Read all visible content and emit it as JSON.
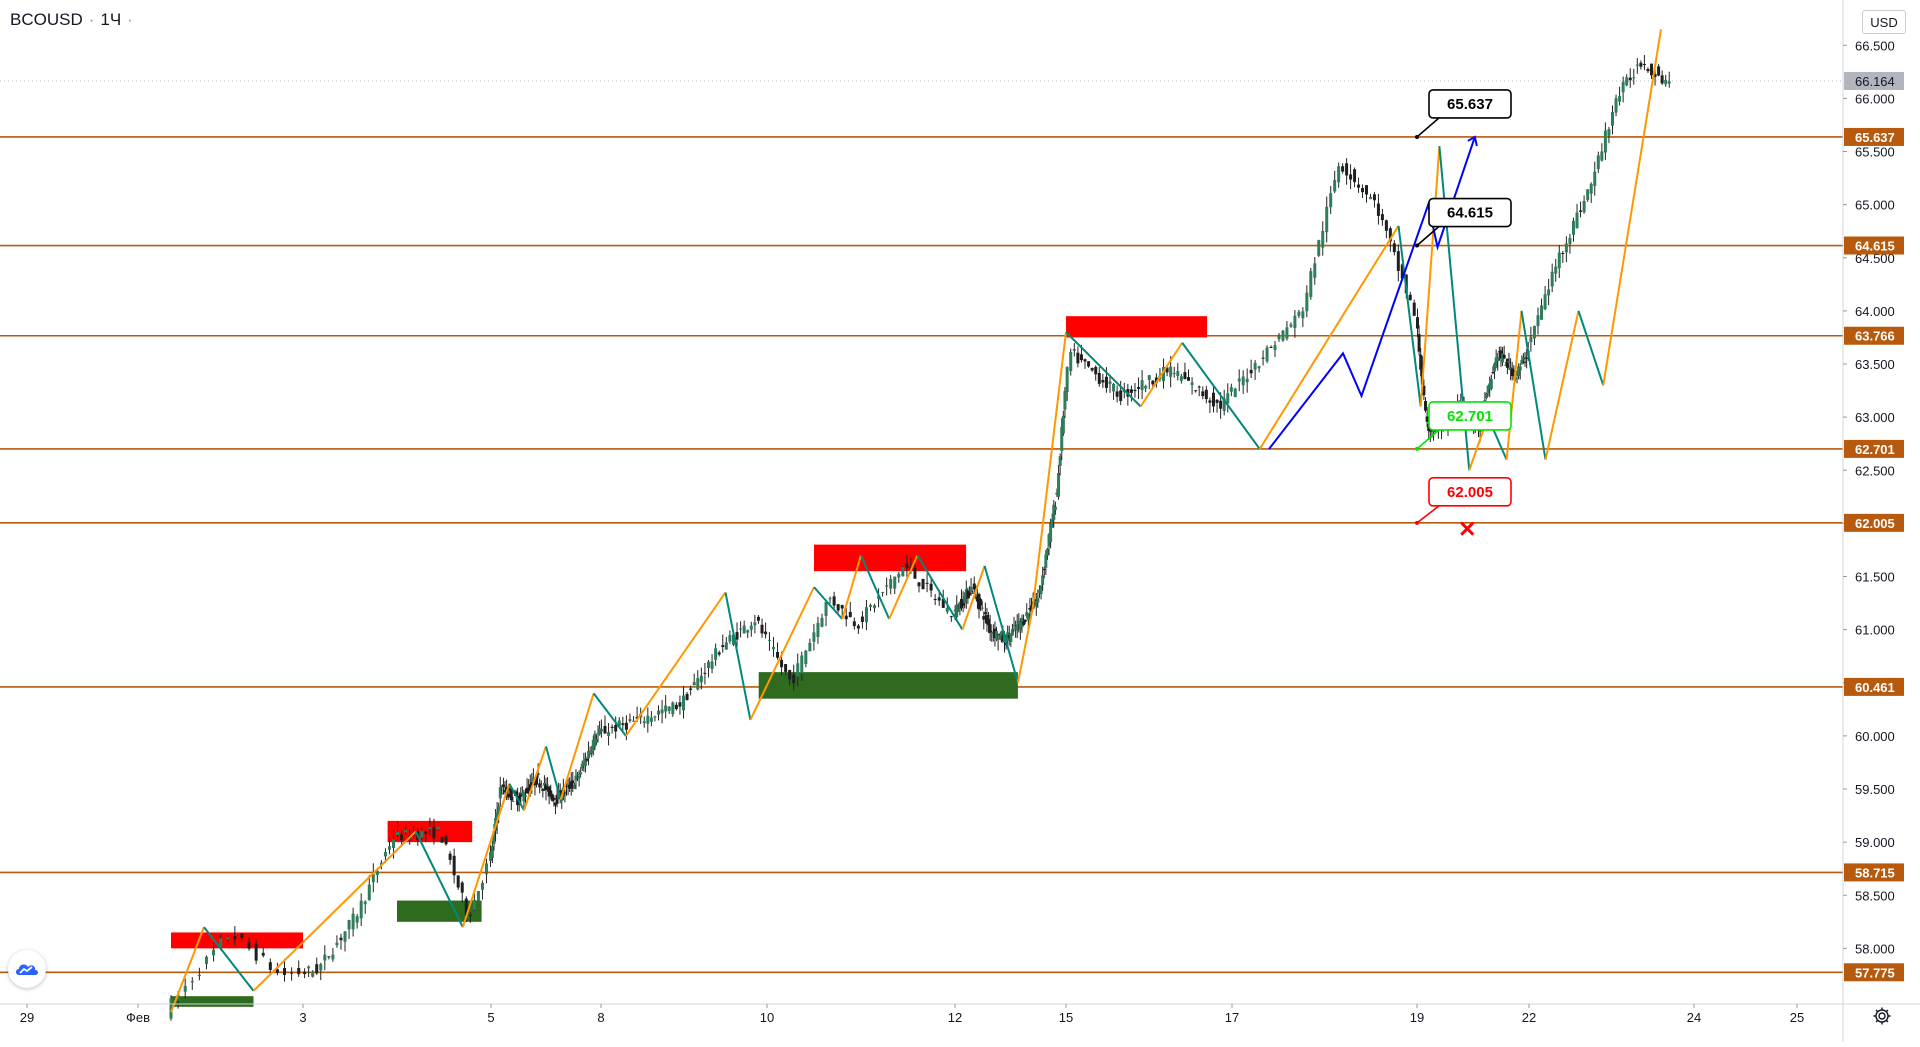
{
  "header": {
    "symbol": "BCOUSD",
    "separator": "·",
    "interval": "1Ч",
    "extra": "·"
  },
  "currency": "USD",
  "icons": {
    "logo": "tradingview-cloud-icon",
    "settings": "gear-icon"
  },
  "colors": {
    "level_line": "#b85a0d",
    "level_label_bg": "#b85a0d",
    "up_candle": "#2e7d5b",
    "down_candle": "#1f1f1f",
    "zigzag_up": "#ff9800",
    "zigzag_down": "#00897b",
    "projection": "#0000ff",
    "supply_zone": "#ff0000",
    "demand_zone": "#2e6b1f",
    "target_green": "#00e600",
    "target_red": "#ff0000",
    "last_price_bg": "#b2b5be"
  },
  "chart_data": {
    "type": "candlestick",
    "symbol": "BCOUSD",
    "interval": "1Ч",
    "price_ticks": [
      "58.000",
      "58.500",
      "59.000",
      "59.500",
      "60.000",
      "60.500",
      "61.000",
      "61.500",
      "62.000",
      "62.500",
      "63.000",
      "63.500",
      "64.000",
      "64.500",
      "65.000",
      "65.500",
      "66.000",
      "66.500"
    ],
    "time_labels": [
      "29",
      "Фев",
      "3",
      "5",
      "8",
      "10",
      "12",
      "15",
      "17",
      "19",
      "22",
      "24",
      "25"
    ],
    "last_price": 66.164,
    "horizontal_levels": [
      "57.775",
      "58.715",
      "60.461",
      "62.005",
      "62.701",
      "63.766",
      "64.615",
      "65.637"
    ],
    "callouts": [
      {
        "label": "65.637",
        "style": "black"
      },
      {
        "label": "64.615",
        "style": "black"
      },
      {
        "label": "62.701",
        "style": "green"
      },
      {
        "label": "62.005",
        "style": "red"
      }
    ],
    "price_path": [
      {
        "t": 2.2,
        "p": 57.4
      },
      {
        "t": 2.6,
        "p": 58.15
      },
      {
        "t": 2.9,
        "p": 57.75
      },
      {
        "t": 3.2,
        "p": 57.8
      },
      {
        "t": 3.6,
        "p": 58.3
      },
      {
        "t": 4.0,
        "p": 59.05
      },
      {
        "t": 4.5,
        "p": 59.1
      },
      {
        "t": 4.8,
        "p": 58.3
      },
      {
        "t": 5.3,
        "p": 59.5
      },
      {
        "t": 5.8,
        "p": 59.4
      },
      {
        "t": 6.3,
        "p": 59.6
      },
      {
        "t": 6.8,
        "p": 59.4
      },
      {
        "t": 7.4,
        "p": 59.6
      },
      {
        "t": 7.9,
        "p": 60.0
      },
      {
        "t": 8.5,
        "p": 60.15
      },
      {
        "t": 9.0,
        "p": 60.3
      },
      {
        "t": 9.5,
        "p": 60.85
      },
      {
        "t": 9.9,
        "p": 61.1
      },
      {
        "t": 10.3,
        "p": 60.5
      },
      {
        "t": 10.7,
        "p": 61.3
      },
      {
        "t": 11.0,
        "p": 61.05
      },
      {
        "t": 11.5,
        "p": 61.6
      },
      {
        "t": 12.0,
        "p": 61.15
      },
      {
        "t": 12.5,
        "p": 61.4
      },
      {
        "t": 13.0,
        "p": 61.0
      },
      {
        "t": 13.4,
        "p": 60.9
      },
      {
        "t": 13.9,
        "p": 61.1
      },
      {
        "t": 14.3,
        "p": 61.3
      },
      {
        "t": 14.8,
        "p": 62.3
      },
      {
        "t": 15.1,
        "p": 63.6
      },
      {
        "t": 15.7,
        "p": 63.2
      },
      {
        "t": 16.3,
        "p": 63.45
      },
      {
        "t": 16.9,
        "p": 63.1
      },
      {
        "t": 17.3,
        "p": 63.5
      },
      {
        "t": 17.8,
        "p": 64.0
      },
      {
        "t": 18.2,
        "p": 65.4
      },
      {
        "t": 18.6,
        "p": 65.0
      },
      {
        "t": 19.0,
        "p": 64.0
      },
      {
        "t": 19.3,
        "p": 62.9
      },
      {
        "t": 19.7,
        "p": 62.9
      },
      {
        "t": 20.2,
        "p": 63.1
      },
      {
        "t": 20.7,
        "p": 62.9
      },
      {
        "t": 21.2,
        "p": 63.6
      },
      {
        "t": 21.7,
        "p": 63.4
      },
      {
        "t": 22.0,
        "p": 63.6
      },
      {
        "t": 22.4,
        "p": 64.5
      },
      {
        "t": 22.8,
        "p": 65.2
      },
      {
        "t": 23.1,
        "p": 66.0
      },
      {
        "t": 23.4,
        "p": 66.35
      },
      {
        "t": 23.7,
        "p": 66.164
      }
    ],
    "zigzag_swings": [
      {
        "t": 2.2,
        "p": 57.4
      },
      {
        "t": 2.4,
        "p": 58.2
      },
      {
        "t": 2.7,
        "p": 57.6
      },
      {
        "t": 4.2,
        "p": 59.1
      },
      {
        "t": 4.7,
        "p": 58.2
      },
      {
        "t": 5.5,
        "p": 59.55
      },
      {
        "t": 5.9,
        "p": 59.3
      },
      {
        "t": 6.5,
        "p": 59.9
      },
      {
        "t": 6.9,
        "p": 59.4
      },
      {
        "t": 7.8,
        "p": 60.4
      },
      {
        "t": 8.3,
        "p": 60.0
      },
      {
        "t": 9.5,
        "p": 61.35
      },
      {
        "t": 9.8,
        "p": 60.15
      },
      {
        "t": 10.5,
        "p": 61.4
      },
      {
        "t": 10.8,
        "p": 61.1
      },
      {
        "t": 11.0,
        "p": 61.7
      },
      {
        "t": 11.3,
        "p": 61.1
      },
      {
        "t": 11.6,
        "p": 61.7
      },
      {
        "t": 12.2,
        "p": 61.0
      },
      {
        "t": 12.8,
        "p": 61.6
      },
      {
        "t": 13.7,
        "p": 60.5
      },
      {
        "t": 14.1,
        "p": 61.2
      },
      {
        "t": 15.0,
        "p": 63.8
      },
      {
        "t": 15.9,
        "p": 63.1
      },
      {
        "t": 16.4,
        "p": 63.7
      },
      {
        "t": 17.3,
        "p": 62.7
      },
      {
        "t": 18.8,
        "p": 64.8
      },
      {
        "t": 19.1,
        "p": 63.1
      },
      {
        "t": 19.6,
        "p": 65.55
      },
      {
        "t": 20.4,
        "p": 62.5
      },
      {
        "t": 20.9,
        "p": 63.0
      },
      {
        "t": 21.4,
        "p": 62.6
      },
      {
        "t": 21.8,
        "p": 64.0
      },
      {
        "t": 22.2,
        "p": 62.6
      },
      {
        "t": 22.6,
        "p": 64.0
      },
      {
        "t": 22.9,
        "p": 63.3
      },
      {
        "t": 23.6,
        "p": 66.65
      }
    ],
    "projection_path": [
      {
        "t": 17.4,
        "p": 62.7
      },
      {
        "t": 18.2,
        "p": 63.6
      },
      {
        "t": 18.4,
        "p": 63.2
      },
      {
        "t": 19.3,
        "p": 65.0
      },
      {
        "t": 19.55,
        "p": 64.6
      },
      {
        "t": 20.55,
        "p": 65.637
      }
    ],
    "supply_zones": [
      {
        "t1": 2.2,
        "t2": 3.0,
        "p_top": 58.15,
        "p_bottom": 58.0
      },
      {
        "t1": 3.9,
        "t2": 4.8,
        "p_top": 59.2,
        "p_bottom": 59.0
      },
      {
        "t1": 10.5,
        "t2": 12.3,
        "p_top": 61.8,
        "p_bottom": 61.55
      },
      {
        "t1": 15.0,
        "t2": 16.7,
        "p_top": 63.95,
        "p_bottom": 63.75
      }
    ],
    "demand_zones": [
      {
        "t1": 2.2,
        "t2": 2.7,
        "p_top": 57.55,
        "p_bottom": 57.45
      },
      {
        "t1": 4.0,
        "t2": 4.9,
        "p_top": 58.45,
        "p_bottom": 58.25
      },
      {
        "t1": 9.9,
        "t2": 13.7,
        "p_top": 60.6,
        "p_bottom": 60.35
      }
    ],
    "failed_marker": {
      "t": 20.4,
      "p": 61.95
    }
  }
}
